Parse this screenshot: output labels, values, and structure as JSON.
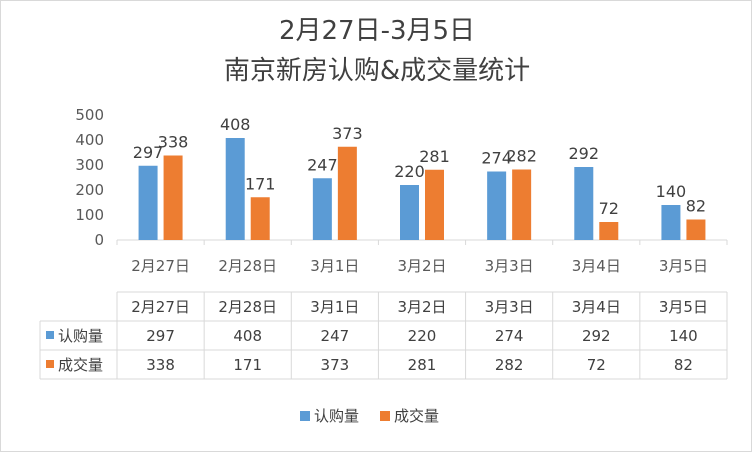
{
  "chart_data": {
    "type": "bar",
    "title": "2月27日-3月5日",
    "subtitle": "南京新房认购&成交量统计",
    "categories": [
      "2月27日",
      "2月28日",
      "3月1日",
      "3月2日",
      "3月3日",
      "3月4日",
      "3月5日"
    ],
    "series": [
      {
        "name": "认购量",
        "color": "#5b9bd5",
        "values": [
          297,
          408,
          247,
          220,
          274,
          292,
          140
        ]
      },
      {
        "name": "成交量",
        "color": "#ed7d31",
        "values": [
          338,
          171,
          373,
          281,
          282,
          72,
          82
        ]
      }
    ],
    "yticks": [
      "0",
      "100",
      "200",
      "300",
      "400",
      "500"
    ],
    "ylim": [
      0,
      500
    ],
    "grid": false,
    "legend": "bottom",
    "data_table": true
  }
}
